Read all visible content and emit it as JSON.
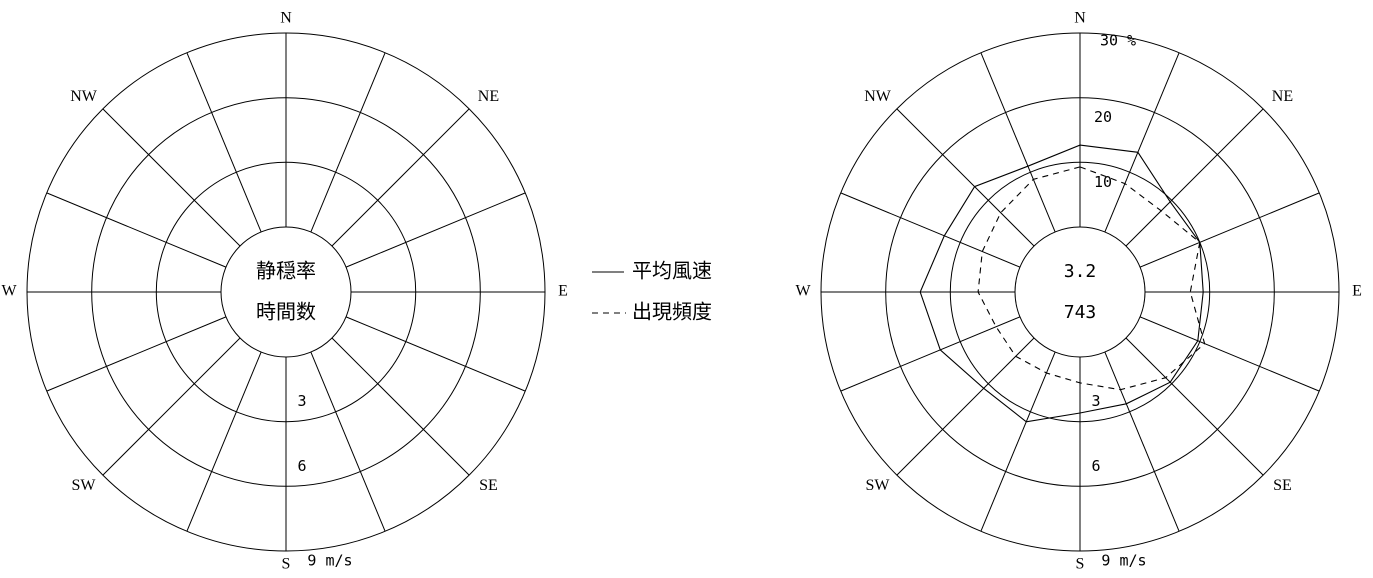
{
  "chart_data": [
    {
      "type": "radar",
      "panel": "template",
      "directions": [
        "N",
        "NNE",
        "NE",
        "ENE",
        "E",
        "ESE",
        "SE",
        "SSE",
        "S",
        "SSW",
        "SW",
        "WSW",
        "W",
        "WNW",
        "NW",
        "NNW"
      ],
      "direction_labels": {
        "N": "N",
        "NE": "NE",
        "E": "E",
        "SE": "SE",
        "S": "S",
        "SW": "SW",
        "W": "W",
        "NW": "NW"
      },
      "speed_ring_labels": [
        "3",
        "6",
        "9 m/s"
      ],
      "center_labels": [
        "静穏率",
        "時間数"
      ]
    },
    {
      "type": "radar",
      "panel": "data",
      "directions": [
        "N",
        "NNE",
        "NE",
        "ENE",
        "E",
        "ESE",
        "SE",
        "SSE",
        "S",
        "SSW",
        "SW",
        "WSW",
        "W",
        "WNW",
        "NW",
        "NNW"
      ],
      "direction_labels": {
        "N": "N",
        "NE": "NE",
        "E": "E",
        "SE": "SE",
        "S": "S",
        "SW": "SW",
        "W": "W",
        "NW": "NW"
      },
      "speed_ring_labels": [
        "3",
        "6",
        "9 m/s"
      ],
      "frequency_ring_labels": [
        "10",
        "20",
        "30 %"
      ],
      "center_values": [
        "3.2",
        "743"
      ],
      "series": [
        {
          "name": "平均風速",
          "style": "solid",
          "unit": "m/s",
          "values": [
            3.8,
            4.0,
            2.9,
            3.0,
            2.7,
            2.9,
            2.9,
            2.6,
            2.6,
            3.5,
            3.3,
            4.0,
            4.4,
            3.8,
            3.9,
            3.3
          ]
        },
        {
          "name": "出現頻度",
          "style": "dashed",
          "unit": "%",
          "values": [
            9.3,
            8.1,
            7.7,
            10.0,
            7.0,
            10.8,
            8.7,
            6.3,
            4.0,
            3.5,
            4.0,
            4.0,
            5.7,
            6.3,
            7.3,
            8.8
          ]
        }
      ]
    }
  ],
  "legend": {
    "solid_label": "平均風速",
    "dashed_label": "出現頻度"
  }
}
